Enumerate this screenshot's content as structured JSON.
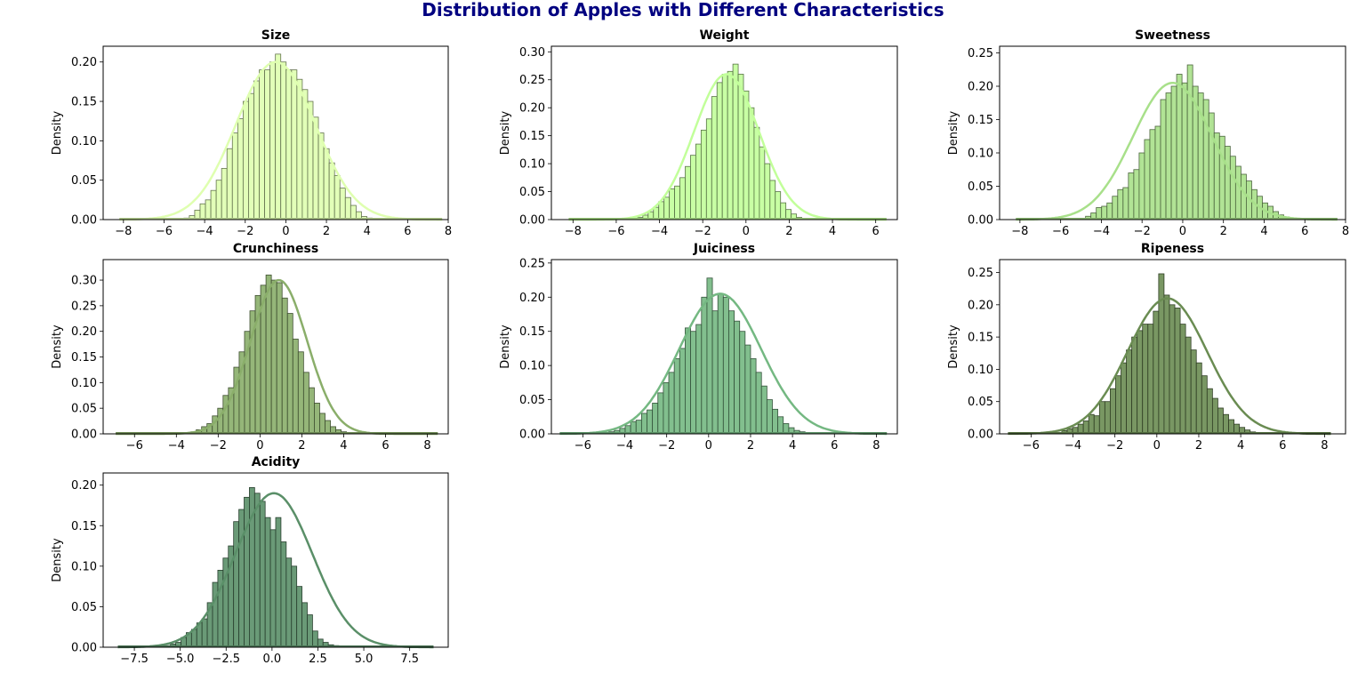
{
  "title": "Distribution of Apples with Different Characteristics",
  "title_color": "#000080",
  "chart_data": [
    {
      "type": "histogram",
      "title": "Size",
      "ylabel": "Density",
      "color": "#dfffb0",
      "xlim": [
        -9,
        8
      ],
      "ylim": [
        0,
        0.22
      ],
      "xticks": [
        -8,
        -6,
        -4,
        -2,
        0,
        2,
        4,
        6,
        8
      ],
      "yticks": [
        0.0,
        0.05,
        0.1,
        0.15,
        0.2
      ],
      "ytick_decimals": 2,
      "bin_edges": [
        -8.2,
        7.7
      ],
      "bin_count": 60,
      "density": [
        0,
        0,
        0,
        0,
        0,
        0,
        0,
        0,
        0,
        0,
        0,
        0,
        0.002,
        0.005,
        0.012,
        0.02,
        0.025,
        0.037,
        0.05,
        0.065,
        0.09,
        0.11,
        0.128,
        0.15,
        0.16,
        0.176,
        0.19,
        0.19,
        0.2,
        0.21,
        0.2,
        0.19,
        0.19,
        0.178,
        0.165,
        0.15,
        0.13,
        0.11,
        0.09,
        0.072,
        0.056,
        0.04,
        0.028,
        0.018,
        0.01,
        0.004,
        0.002,
        0,
        0,
        0,
        0,
        0,
        0,
        0,
        0,
        0,
        0,
        0,
        0,
        0
      ],
      "kde": {
        "mean": -0.5,
        "sd": 1.95,
        "peak": 0.2
      }
    },
    {
      "type": "histogram",
      "title": "Weight",
      "ylabel": "Density",
      "color": "#c2ff9a",
      "xlim": [
        -9,
        7
      ],
      "ylim": [
        0,
        0.31
      ],
      "xticks": [
        -8,
        -6,
        -4,
        -2,
        0,
        2,
        4,
        6
      ],
      "yticks": [
        0.0,
        0.05,
        0.1,
        0.15,
        0.2,
        0.25,
        0.3
      ],
      "ytick_decimals": 2,
      "bin_edges": [
        -8.2,
        6.5
      ],
      "bin_count": 60,
      "density": [
        0,
        0,
        0,
        0,
        0,
        0,
        0,
        0,
        0,
        0,
        0,
        0,
        0.002,
        0.004,
        0.008,
        0.014,
        0.022,
        0.032,
        0.04,
        0.055,
        0.06,
        0.075,
        0.095,
        0.115,
        0.135,
        0.16,
        0.18,
        0.22,
        0.245,
        0.26,
        0.265,
        0.278,
        0.26,
        0.23,
        0.2,
        0.165,
        0.13,
        0.1,
        0.07,
        0.05,
        0.03,
        0.018,
        0.01,
        0.004,
        0.002,
        0.001,
        0,
        0,
        0,
        0,
        0,
        0,
        0,
        0,
        0,
        0,
        0,
        0,
        0,
        0
      ],
      "kde": {
        "mean": -0.9,
        "sd": 1.5,
        "peak": 0.26
      }
    },
    {
      "type": "histogram",
      "title": "Sweetness",
      "ylabel": "Density",
      "color": "#a8e08a",
      "xlim": [
        -9,
        8
      ],
      "ylim": [
        0,
        0.26
      ],
      "xticks": [
        -8,
        -6,
        -4,
        -2,
        0,
        2,
        4,
        6,
        8
      ],
      "yticks": [
        0.0,
        0.05,
        0.1,
        0.15,
        0.2,
        0.25
      ],
      "ytick_decimals": 2,
      "bin_edges": [
        -8.2,
        7.6
      ],
      "bin_count": 60,
      "density": [
        0,
        0,
        0,
        0,
        0,
        0,
        0,
        0,
        0,
        0,
        0,
        0,
        0.002,
        0.005,
        0.01,
        0.018,
        0.02,
        0.025,
        0.035,
        0.045,
        0.048,
        0.07,
        0.075,
        0.1,
        0.12,
        0.135,
        0.14,
        0.18,
        0.19,
        0.2,
        0.218,
        0.205,
        0.232,
        0.2,
        0.19,
        0.18,
        0.16,
        0.13,
        0.125,
        0.11,
        0.095,
        0.08,
        0.068,
        0.058,
        0.045,
        0.035,
        0.025,
        0.02,
        0.012,
        0.007,
        0.004,
        0.002,
        0,
        0,
        0,
        0,
        0,
        0,
        0,
        0
      ],
      "kde": {
        "mean": -0.5,
        "sd": 1.95,
        "peak": 0.205
      }
    },
    {
      "type": "histogram",
      "title": "Crunchiness",
      "ylabel": "Density",
      "color": "#8aae6a",
      "xlim": [
        -7.5,
        9
      ],
      "ylim": [
        0,
        0.34
      ],
      "xticks": [
        -6,
        -4,
        -2,
        0,
        2,
        4,
        6,
        8
      ],
      "yticks": [
        0.0,
        0.05,
        0.1,
        0.15,
        0.2,
        0.25,
        0.3
      ],
      "ytick_decimals": 2,
      "bin_edges": [
        -6.9,
        8.5
      ],
      "bin_count": 60,
      "density": [
        0,
        0,
        0,
        0,
        0,
        0,
        0,
        0,
        0,
        0,
        0,
        0,
        0,
        0.002,
        0.004,
        0.008,
        0.014,
        0.02,
        0.035,
        0.05,
        0.075,
        0.09,
        0.13,
        0.16,
        0.2,
        0.24,
        0.27,
        0.29,
        0.31,
        0.3,
        0.295,
        0.265,
        0.235,
        0.185,
        0.16,
        0.12,
        0.09,
        0.06,
        0.04,
        0.026,
        0.014,
        0.008,
        0.004,
        0.002,
        0,
        0,
        0,
        0,
        0,
        0,
        0,
        0,
        0,
        0,
        0,
        0,
        0,
        0,
        0,
        0
      ],
      "kde": {
        "mean": 0.9,
        "sd": 1.35,
        "peak": 0.3
      }
    },
    {
      "type": "histogram",
      "title": "Juiciness",
      "ylabel": "Density",
      "color": "#74b882",
      "xlim": [
        -7.5,
        9
      ],
      "ylim": [
        0,
        0.255
      ],
      "xticks": [
        -6,
        -4,
        -2,
        0,
        2,
        4,
        6,
        8
      ],
      "yticks": [
        0.0,
        0.05,
        0.1,
        0.15,
        0.2,
        0.25
      ],
      "ytick_decimals": 2,
      "bin_edges": [
        -7.1,
        8.5
      ],
      "bin_count": 60,
      "density": [
        0,
        0,
        0,
        0,
        0,
        0,
        0,
        0,
        0.002,
        0.003,
        0.005,
        0.008,
        0.012,
        0.018,
        0.02,
        0.03,
        0.035,
        0.045,
        0.06,
        0.075,
        0.09,
        0.11,
        0.125,
        0.155,
        0.15,
        0.16,
        0.2,
        0.228,
        0.18,
        0.205,
        0.2,
        0.18,
        0.165,
        0.15,
        0.13,
        0.11,
        0.09,
        0.07,
        0.05,
        0.036,
        0.025,
        0.015,
        0.009,
        0.005,
        0.003,
        0.002,
        0,
        0,
        0,
        0,
        0,
        0,
        0,
        0,
        0,
        0,
        0,
        0,
        0,
        0
      ],
      "kde": {
        "mean": 0.55,
        "sd": 1.95,
        "peak": 0.205
      }
    },
    {
      "type": "histogram",
      "title": "Ripeness",
      "ylabel": "Density",
      "color": "#6a8c52",
      "xlim": [
        -7.5,
        9
      ],
      "ylim": [
        0,
        0.27
      ],
      "xticks": [
        -6,
        -4,
        -2,
        0,
        2,
        4,
        6,
        8
      ],
      "yticks": [
        0.0,
        0.05,
        0.1,
        0.15,
        0.2,
        0.25
      ],
      "ytick_decimals": 2,
      "bin_edges": [
        -7.1,
        8.3
      ],
      "bin_count": 60,
      "density": [
        0,
        0,
        0,
        0,
        0,
        0,
        0,
        0,
        0,
        0.002,
        0.005,
        0.008,
        0.01,
        0.015,
        0.02,
        0.03,
        0.028,
        0.05,
        0.05,
        0.07,
        0.09,
        0.11,
        0.13,
        0.15,
        0.16,
        0.17,
        0.17,
        0.19,
        0.248,
        0.215,
        0.2,
        0.195,
        0.17,
        0.15,
        0.13,
        0.11,
        0.09,
        0.07,
        0.055,
        0.04,
        0.03,
        0.022,
        0.015,
        0.01,
        0.006,
        0.003,
        0.002,
        0,
        0,
        0,
        0,
        0,
        0,
        0,
        0,
        0,
        0,
        0,
        0,
        0
      ],
      "kde": {
        "mean": 0.5,
        "sd": 1.9,
        "peak": 0.21
      }
    },
    {
      "type": "histogram",
      "title": "Acidity",
      "ylabel": "Density",
      "color": "#5a8f68",
      "xlim": [
        -9.2,
        9.6
      ],
      "ylim": [
        0,
        0.215
      ],
      "xticks": [
        -7.5,
        -5.0,
        -2.5,
        0.0,
        2.5,
        5.0,
        7.5
      ],
      "yticks": [
        0.0,
        0.05,
        0.1,
        0.15,
        0.2
      ],
      "ytick_decimals": 2,
      "bin_edges": [
        -8.4,
        8.8
      ],
      "bin_count": 60,
      "density": [
        0,
        0,
        0,
        0,
        0,
        0,
        0,
        0,
        0,
        0.002,
        0.004,
        0.006,
        0.012,
        0.018,
        0.022,
        0.03,
        0.035,
        0.055,
        0.08,
        0.095,
        0.11,
        0.125,
        0.155,
        0.17,
        0.185,
        0.197,
        0.19,
        0.18,
        0.16,
        0.145,
        0.16,
        0.13,
        0.11,
        0.1,
        0.075,
        0.055,
        0.04,
        0.02,
        0.01,
        0.006,
        0.003,
        0.002,
        0,
        0,
        0,
        0,
        0,
        0,
        0,
        0,
        0,
        0,
        0,
        0,
        0,
        0,
        0,
        0,
        0,
        0
      ],
      "kde": {
        "mean": 0.1,
        "sd": 2.1,
        "peak": 0.19
      }
    }
  ]
}
